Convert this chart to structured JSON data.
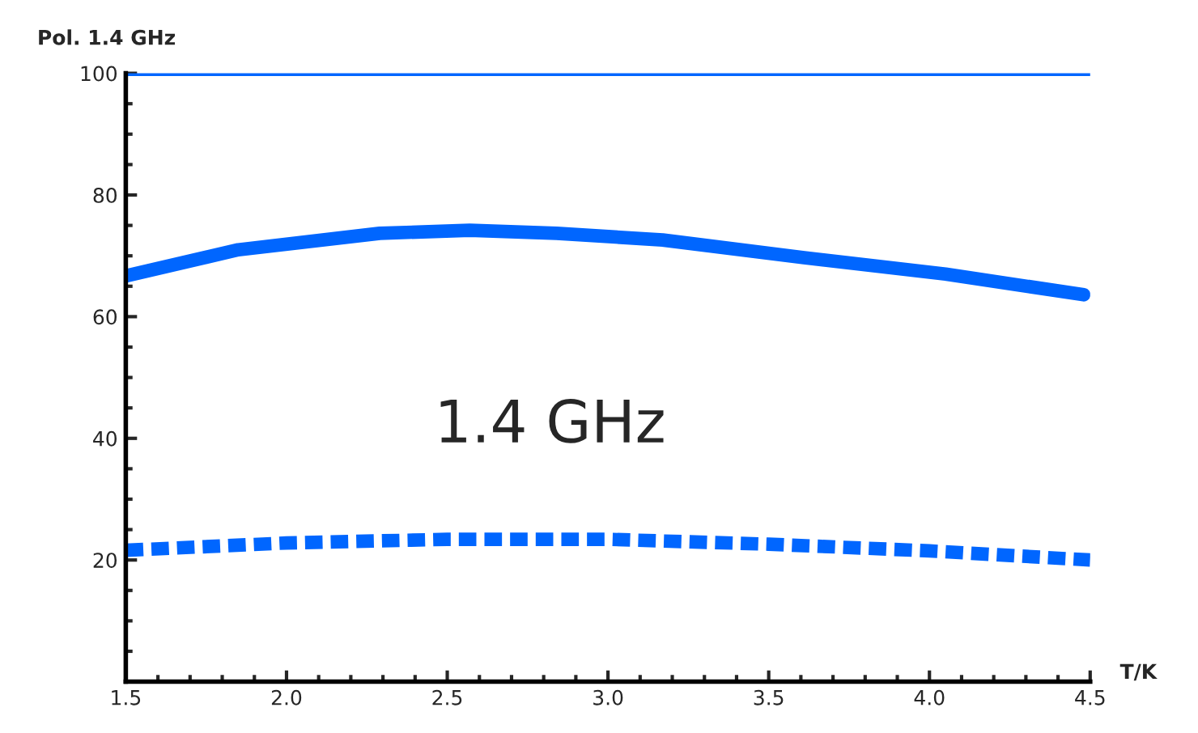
{
  "chart_data": {
    "type": "line",
    "ylabel": "Pol. 1.4 GHz",
    "xlabel": "T/K",
    "annotations": [
      "1.4 GHz"
    ],
    "xlim": [
      1.5,
      4.5
    ],
    "xticks": [
      {
        "value": 1.5,
        "label": "1.5"
      },
      {
        "value": 2.0,
        "label": "2.0"
      },
      {
        "value": 2.5,
        "label": "2.5"
      },
      {
        "value": 3.0,
        "label": "3.0"
      },
      {
        "value": 3.5,
        "label": "3.5"
      },
      {
        "value": 4.0,
        "label": "4.0"
      },
      {
        "value": 4.5,
        "label": "4.5"
      }
    ],
    "ylim": [
      0,
      100
    ],
    "yticks": [
      {
        "value": 0,
        "label": null
      },
      20,
      40,
      60,
      80,
      100
    ],
    "grid": false,
    "legend": false,
    "series": [
      {
        "color": "#0066ff",
        "line_style": "solid",
        "x": [
          1.5,
          4.5
        ],
        "values": [
          100,
          100
        ]
      },
      {
        "color": "#0066ff",
        "line_style": "solid",
        "x": [
          1.5,
          1.85,
          2.29,
          2.57,
          2.84,
          3.17,
          3.61,
          4.05,
          4.48
        ],
        "values": [
          66.7,
          71.0,
          73.7,
          74.2,
          73.7,
          72.6,
          69.7,
          67.0,
          63.6
        ]
      },
      {
        "color": "#0066ff",
        "line_style": "dotted",
        "x": [
          1.5,
          2.0,
          2.5,
          3.0,
          3.5,
          4.0,
          4.5
        ],
        "values": [
          21.6,
          22.8,
          23.4,
          23.4,
          22.6,
          21.5,
          20.0
        ]
      }
    ]
  }
}
